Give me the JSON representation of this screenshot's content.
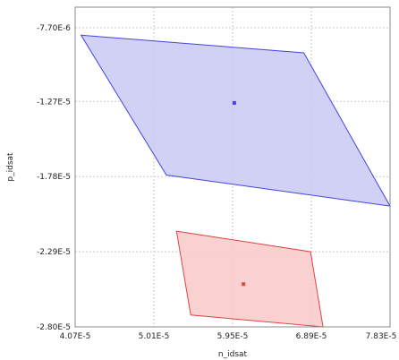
{
  "chart_data": {
    "type": "scatter",
    "title": "",
    "xlabel": "n_idsat",
    "ylabel": "p_idsat",
    "x_ticks": [
      "4.07E-5",
      "5.01E-5",
      "5.95E-5",
      "6.89E-5",
      "7.83E-5"
    ],
    "y_ticks": [
      "-7.70E-6",
      "-1.27E-5",
      "-1.78E-5",
      "-2.29E-5",
      "-2.80E-5"
    ],
    "x_tick_values": [
      4.07e-05,
      5.01e-05,
      5.95e-05,
      6.89e-05,
      7.83e-05
    ],
    "y_tick_values": [
      -7.7e-06,
      -1.27e-05,
      -1.78e-05,
      -2.29e-05,
      -2.8e-05
    ],
    "xlim": [
      4.07e-05,
      7.83e-05
    ],
    "ylim": [
      -2.8e-05,
      -6.3e-06
    ],
    "grid": true,
    "series": [
      {
        "color": "#4444dd",
        "fill": "#ccccf4",
        "polygon": [
          {
            "x": 4.14e-05,
            "y": -8.2e-06
          },
          {
            "x": 6.8e-05,
            "y": -9.4e-06
          },
          {
            "x": 7.83e-05,
            "y": -1.98e-05
          },
          {
            "x": 5.16e-05,
            "y": -1.77e-05
          }
        ],
        "center": {
          "x": 5.97e-05,
          "y": -1.28e-05
        }
      },
      {
        "color": "#dd4444",
        "fill": "#f8cccc",
        "polygon": [
          {
            "x": 5.28e-05,
            "y": -2.15e-05
          },
          {
            "x": 6.88e-05,
            "y": -2.29e-05
          },
          {
            "x": 7.03e-05,
            "y": -2.8e-05
          },
          {
            "x": 5.45e-05,
            "y": -2.72e-05
          }
        ],
        "center": {
          "x": 6.08e-05,
          "y": -2.51e-05
        }
      }
    ]
  }
}
